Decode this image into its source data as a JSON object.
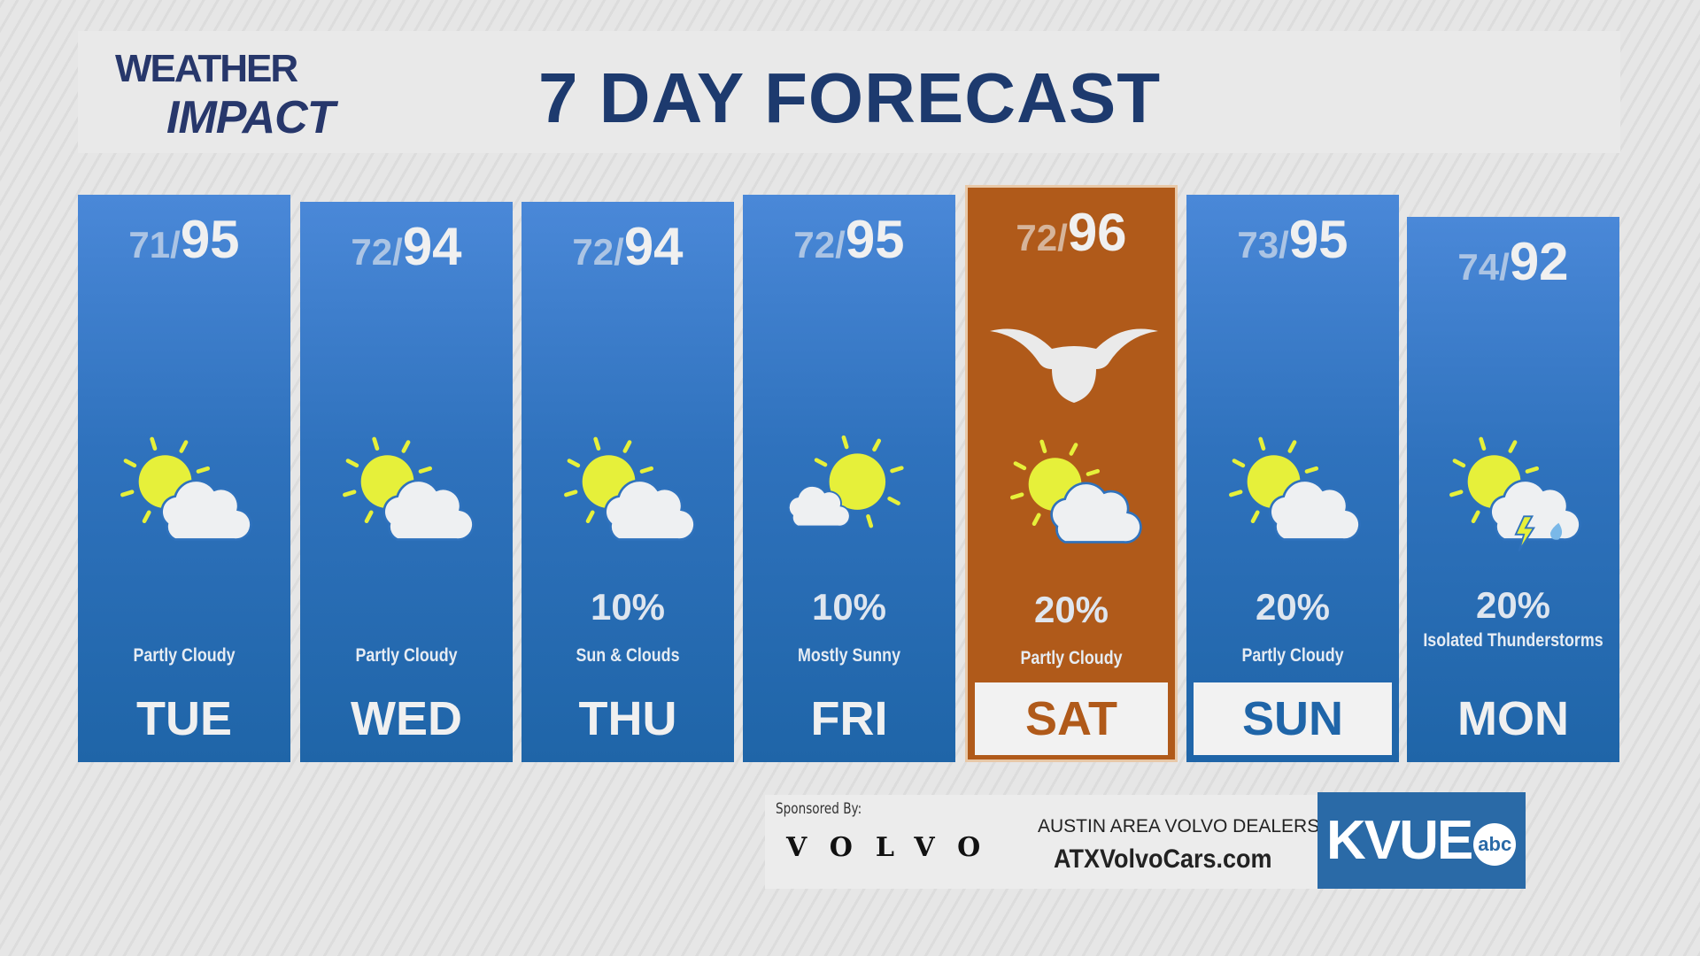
{
  "header": {
    "logo_line1": "WEATHER",
    "logo_line2": "IMPACT",
    "title": "7 DAY FORECAST"
  },
  "colors": {
    "card_blue": "#2f72bd",
    "highlight_orange": "#b05a1a",
    "title_navy": "#1d3a6e",
    "sun_yellow": "#e6f03a"
  },
  "days": [
    {
      "day": "TUE",
      "low": "71/",
      "high": "95",
      "precip": "",
      "condition": "Partly Cloudy",
      "icon": "partly-cloudy",
      "highlight": false,
      "boxed": false
    },
    {
      "day": "WED",
      "low": "72/",
      "high": "94",
      "precip": "",
      "condition": "Partly Cloudy",
      "icon": "partly-cloudy",
      "highlight": false,
      "boxed": false
    },
    {
      "day": "THU",
      "low": "72/",
      "high": "94",
      "precip": "10%",
      "condition": "Sun & Clouds",
      "icon": "partly-cloudy",
      "highlight": false,
      "boxed": false
    },
    {
      "day": "FRI",
      "low": "72/",
      "high": "95",
      "precip": "10%",
      "condition": "Mostly Sunny",
      "icon": "mostly-sunny",
      "highlight": false,
      "boxed": false
    },
    {
      "day": "SAT",
      "low": "72/",
      "high": "96",
      "precip": "20%",
      "condition": "Partly Cloudy",
      "icon": "partly-cloudy",
      "highlight": true,
      "boxed": true
    },
    {
      "day": "SUN",
      "low": "73/",
      "high": "95",
      "precip": "20%",
      "condition": "Partly Cloudy",
      "icon": "partly-cloudy",
      "highlight": false,
      "boxed": true
    },
    {
      "day": "MON",
      "low": "74/",
      "high": "92",
      "precip": "20%",
      "condition": "Isolated Thunderstorms",
      "icon": "isolated-thunderstorms",
      "highlight": false,
      "boxed": false
    }
  ],
  "sponsor": {
    "label": "Sponsored By:",
    "brand": "VOLVO",
    "dealers": "AUSTIN AREA VOLVO DEALERS",
    "url": "ATXVolvoCars.com"
  },
  "station": {
    "name": "KVUE",
    "network": "abc"
  }
}
